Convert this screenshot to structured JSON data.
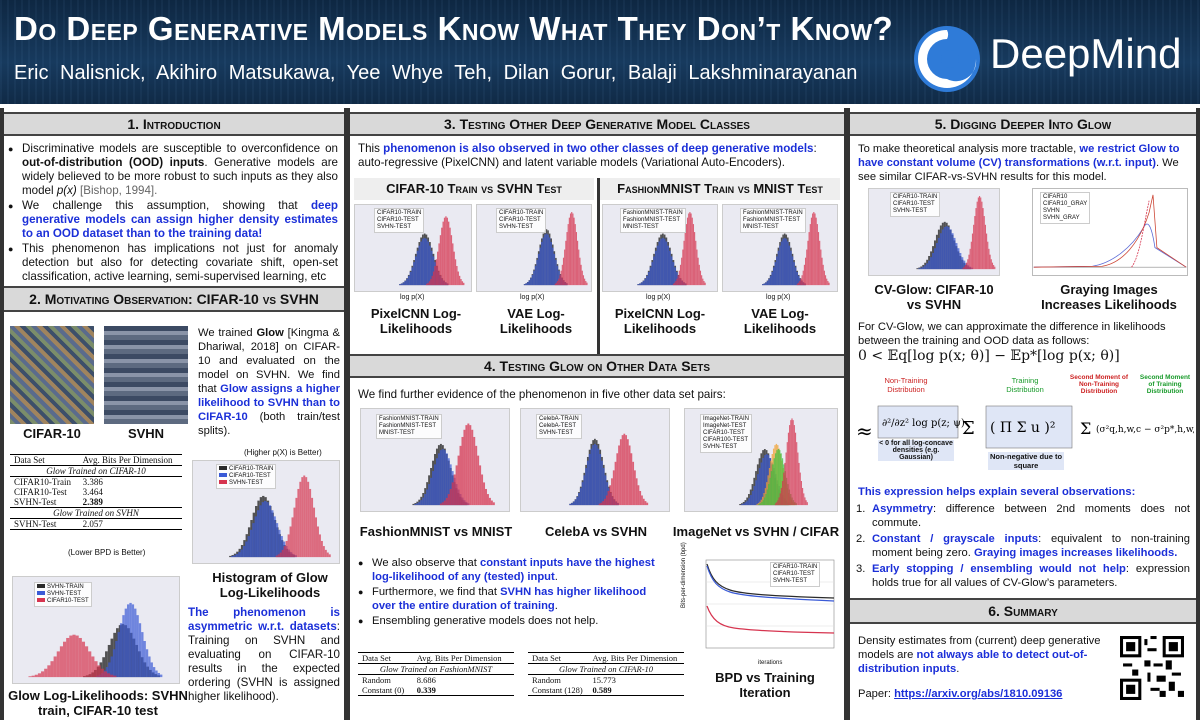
{
  "header": {
    "title": "Do Deep Generative Models Know What They Don’t Know?",
    "authors": "Eric Nalisnick,  Akihiro Matsukawa,  Yee Whye Teh,  Dilan Gorur,  Balaji Lakshminarayanan",
    "logo_text": "DeepMind"
  },
  "s1": {
    "heading": "1.   Introduction",
    "b1_a": "Discriminative models are susceptible to overconfidence on ",
    "b1_b": "out-of-distribution (OOD) inputs",
    "b1_c": ".  Generative models are widely believed to be more robust to such inputs as they also model ",
    "b1_d": "p(x)",
    "b1_e": " [Bishop, 1994].",
    "b2_a": "We challenge this assumption, showing that ",
    "b2_b": "deep generative models can assign higher density estimates to an OOD dataset than to the training data!",
    "b3": "This phenomenon has implications not just for anomaly detection but also for detecting covariate shift, open-set classification, active learning, semi-supervised learning, etc"
  },
  "s2": {
    "heading": "2.  Motivating Observation:  CIFAR-10 vs SVHN",
    "p_a": "We trained ",
    "p_b": "Glow",
    "p_c": " [Kingma & Dhariwal, 2018] on CIFAR-10 and evaluated on the model on SVHN. We find that ",
    "p_d": "Glow assigns a higher likelihood to SVHN than to CIFAR-10",
    "p_e": " (both train/test splits).",
    "img1_label": "CIFAR-10",
    "img2_label": "SVHN",
    "table_head": [
      "Data Set",
      "Avg. Bits Per Dimension"
    ],
    "table_sub1": "Glow Trained on CIFAR-10",
    "table_rows1": [
      [
        "CIFAR10-Train",
        "3.386"
      ],
      [
        "CIFAR10-Test",
        "3.464"
      ],
      [
        "SVHN-Test",
        "2.389"
      ]
    ],
    "table_sub2": "Glow Trained on SVHN",
    "table_rows2": [
      [
        "SVHN-Test",
        "2.057"
      ]
    ],
    "lower_bpd": "(Lower BPD is Better)",
    "higher_p": "(Higher p(X) is Better)",
    "hist_caption": "Histogram of Glow Log-Likelihoods",
    "bottom_caption": "Glow Log-Likelihoods: SVHN train, CIFAR-10 test",
    "asym_a": "The phenomenon is asymmetric w.r.t. datasets",
    "asym_b": ": Training on SVHN and evaluating on CIFAR-10 results in the expected ordering (SVHN is assigned higher likelihood)."
  },
  "s3": {
    "heading": "3.  Testing Other Deep Generative Model Classes",
    "p_a": "This ",
    "p_b": "phenomenon is also observed in two other classes of deep generative models",
    "p_c": ": auto-regressive (PixelCNN) and latent variable models (Variational Auto-Encoders).",
    "sub1": "CIFAR-10 Train vs SVHN Test",
    "sub2": "FashionMNIST Train vs MNIST Test",
    "cap1": "PixelCNN Log-Likelihoods",
    "cap2": "VAE Log-Likelihoods",
    "cap3": "PixelCNN Log-Likelihoods",
    "cap4": "VAE Log-Likelihoods",
    "xlabel": "log p(X)"
  },
  "s4": {
    "heading": "4.  Testing Glow on Other Data Sets",
    "p": "We find further evidence of the phenomenon in five other data set pairs:",
    "cap1": "FashionMNIST vs MNIST",
    "cap2": "CelebA vs SVHN",
    "cap3": "ImageNet vs SVHN / CIFAR",
    "b1_a": "We also observe that ",
    "b1_b": "constant inputs have the highest log-likelihood of any (tested) input",
    "b1_c": ".",
    "b2_a": "Furthermore, we find that ",
    "b2_b": "SVHN has higher likelihood over the entire duration of training",
    "b2_c": ".",
    "b3": "Ensembling generative models does not help.",
    "t1_head": [
      "Data Set",
      "Avg. Bits Per Dimension"
    ],
    "t1_sub": "Glow Trained on FashionMNIST",
    "t1_rows": [
      [
        "Random",
        "8.686"
      ],
      [
        "Constant (0)",
        "0.339"
      ]
    ],
    "t2_head": [
      "Data Set",
      "Avg. Bits Per Dimension"
    ],
    "t2_sub": "Glow Trained on CIFAR-10",
    "t2_rows": [
      [
        "Random",
        "15.773"
      ],
      [
        "Constant (128)",
        "0.589"
      ]
    ],
    "bpd_caption": "BPD vs Training Iteration",
    "bpd_xlabel": "iterations",
    "bpd_ylabel": "Bits-per-dimension (bpd)"
  },
  "s5": {
    "heading": "5.  Digging Deeper Into Glow",
    "p_a": "To make theoretical analysis more tractable, ",
    "p_b": "we restrict Glow to have constant volume (CV) transformations (w.r.t. input)",
    "p_c": ".  We see similar CIFAR-vs-SVHN results for this model.",
    "cap1": "CV-Glow: CIFAR-10 vs SVHN",
    "cap2": "Graying Images Increases Likelihoods",
    "p2": "For CV-Glow, we can approximate the difference in likelihoods between the training and OOD data as follows:",
    "eq1": "0 < 𝔼q[log p(x; θ)] − 𝔼p*[log p(x; θ)]",
    "ann1": "Non-Training Distribution",
    "ann2": "Training Distribution",
    "ann3": "Second Moment of Non-Training Distribution",
    "ann4": "Second Moment of Training Distribution",
    "ann5": "< 0 for all log-concave densities (e.g. Gaussian)",
    "ann6": "Non-negative due to square",
    "expl": "This expression helps explain several observations:",
    "o1_a": "Asymmetry",
    "o1_b": ": difference between 2nd moments does not commute.",
    "o2_a": "Constant / grayscale inputs",
    "o2_b": ": equivalent to non-training moment being zero.  ",
    "o2_c": "Graying images increases likelihoods.",
    "o3_a": "Early stopping / ensembling would not help",
    "o3_b": ": expression holds true for all values of CV-Glow’s parameters."
  },
  "s6": {
    "heading": "6.  Summary",
    "p_a": "Density estimates from (current) deep generative models are ",
    "p_b": "not always able to detect out-of-distribution inputs",
    "p_c": ".",
    "paper_label": "Paper:  ",
    "paper_link": "https://arxiv.org/abs/1810.09136"
  },
  "legends": {
    "cifar3": [
      "CIFAR10-TRAIN",
      "CIFAR10-TEST",
      "SVHN-TEST"
    ],
    "svhn3": [
      "SVHN-TRAIN",
      "SVHN-TEST",
      "CIFAR10-TEST"
    ],
    "fm3": [
      "FashionMNIST-TRAIN",
      "FashionMNIST-TEST",
      "MNIST-TEST"
    ],
    "celeb3": [
      "CelebA-TRAIN",
      "CelebA-TEST",
      "SVHN-TEST"
    ],
    "imnet5": [
      "ImageNet-TRAIN",
      "ImageNet-TEST",
      "CIFAR10-TEST",
      "CIFAR100-TEST",
      "SVHN-TEST"
    ],
    "bpd3": [
      "CIFAR10-TRAIN",
      "CIFAR10-TEST",
      "SVHN-TEST"
    ],
    "gray4": [
      "CIFAR10",
      "CIFAR10_GRAY",
      "SVHN",
      "SVHN_GRAY"
    ]
  },
  "colors": {
    "cifar_train": "#2b2b2b",
    "cifar_test": "#3a5ad6",
    "svhn": "#d6344f",
    "header": "#133152"
  }
}
